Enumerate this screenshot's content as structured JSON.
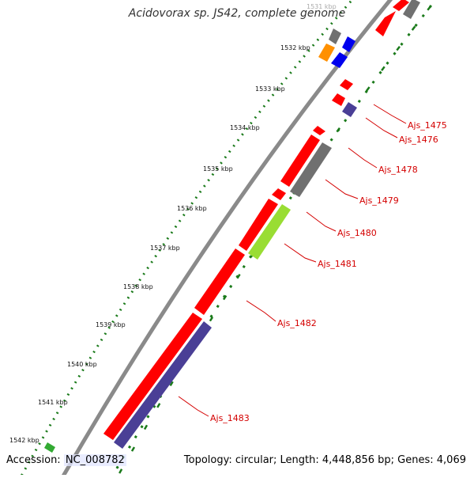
{
  "map": {
    "title": "Acidovorax sp. JS42, complete genome",
    "accession_label": "Accession:",
    "accession_value": "NC_008782",
    "topology_text": "Topology: circular; Length: 4,448,856 bp; Genes: 4,069"
  },
  "colors": {
    "backbone": "#8a8a8a",
    "forward_gene": "#ff0000",
    "reverse_gene": "#4a3f96",
    "grey_gene": "#707070",
    "orange_gene": "#ff9000",
    "blue_gene": "#0000ee",
    "lime_gene": "#99dd33",
    "tick_dots": "#1a7a1a",
    "label_red": "#d40000"
  },
  "scale_ticks": [
    "1531 kbp",
    "1532 kbp",
    "1533 kbp",
    "1534 kbp",
    "1535 kbp",
    "1536 kbp",
    "1537 kbp",
    "1538 kbp",
    "1539 kbp",
    "1540 kbp",
    "1541 kbp",
    "1542 kbp"
  ],
  "gene_labels": [
    "Ajs_1475",
    "Ajs_1476",
    "Ajs_1478",
    "Ajs_1479",
    "Ajs_1480",
    "Ajs_1481",
    "Ajs_1482",
    "Ajs_1483"
  ]
}
